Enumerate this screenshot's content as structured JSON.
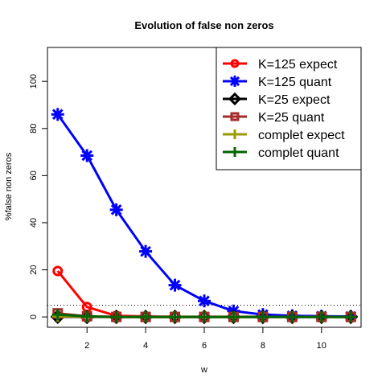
{
  "chart_data": {
    "type": "line",
    "title": "Evolution of false non zeros",
    "xlabel": "w",
    "ylabel": "%false non zeros",
    "xlim": [
      0.65,
      11.35
    ],
    "ylim": [
      -4.4,
      114.4
    ],
    "x_ticks": [
      2,
      4,
      6,
      8,
      10
    ],
    "x_tick_labels": [
      "2",
      "4",
      "6",
      "8",
      "10"
    ],
    "y_ticks": [
      0,
      20,
      40,
      60,
      80,
      100
    ],
    "y_tick_labels": [
      "0",
      "20",
      "40",
      "60",
      "80",
      "100"
    ],
    "grid": false,
    "legend_position": "top-right",
    "reference_line": {
      "y": 5,
      "style": "dotted",
      "color": "#000000"
    },
    "x": [
      1,
      2,
      3,
      4,
      5,
      6,
      7,
      8,
      9,
      10,
      11
    ],
    "series": [
      {
        "name": "K=125 expect",
        "color": "#ff0000",
        "marker": "circle",
        "values": [
          19.5,
          4.2,
          0.5,
          0.2,
          0.1,
          0.1,
          0.1,
          0.1,
          0.1,
          0.1,
          0.1
        ]
      },
      {
        "name": "K=125 quant",
        "color": "#0000ff",
        "marker": "asterisk",
        "values": [
          86,
          68.5,
          45.5,
          27.8,
          13.5,
          6.8,
          2.5,
          1.0,
          0.5,
          0.3,
          0.2
        ]
      },
      {
        "name": "K=25 expect",
        "color": "#000000",
        "marker": "diamond",
        "values": [
          0.1,
          0,
          0,
          0,
          0,
          0,
          0,
          0,
          0,
          0,
          0
        ]
      },
      {
        "name": "K=25 quant",
        "color": "#a52a2a",
        "marker": "square",
        "values": [
          1.5,
          0.3,
          0,
          0,
          0,
          0,
          0,
          0,
          0,
          0,
          0
        ]
      },
      {
        "name": "complet expect",
        "color": "#9a9a00",
        "marker": "plus",
        "values": [
          0.3,
          0.1,
          0,
          0,
          0,
          0,
          0,
          0,
          0,
          0,
          0
        ]
      },
      {
        "name": "complet quant",
        "color": "#006400",
        "marker": "plus",
        "values": [
          1.0,
          0.2,
          0,
          0,
          0,
          0,
          0,
          0,
          0,
          0,
          0
        ]
      }
    ]
  }
}
